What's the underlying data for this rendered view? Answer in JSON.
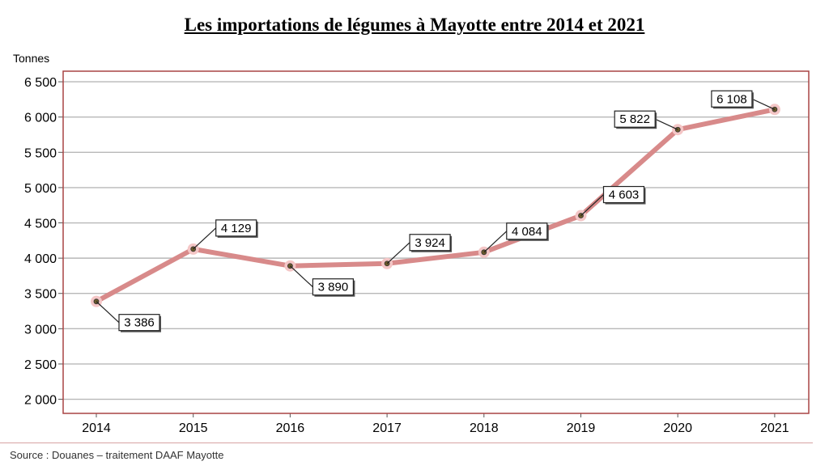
{
  "title": "Les importations de légumes à Mayotte entre 2014 et 2021",
  "source": "Source : Douanes – traitement DAAF Mayotte",
  "chart_data": {
    "type": "line",
    "title": "Les importations de légumes à Mayotte entre 2014 et 2021",
    "ylabel": "Tonnes",
    "xlabel": "",
    "categories": [
      "2014",
      "2015",
      "2016",
      "2017",
      "2018",
      "2019",
      "2020",
      "2021"
    ],
    "values": [
      3386,
      4129,
      3890,
      3924,
      4084,
      4603,
      5822,
      6108
    ],
    "data_labels": [
      "3 386",
      "4 129",
      "3 890",
      "3 924",
      "4 084",
      "4 603",
      "5 822",
      "6 108"
    ],
    "ylim": [
      1800,
      6650
    ],
    "yticks": [
      2000,
      2500,
      3000,
      3500,
      4000,
      4500,
      5000,
      5500,
      6000,
      6500
    ],
    "ytick_labels": [
      "2 000",
      "2 500",
      "3 000",
      "3 500",
      "4 000",
      "4 500",
      "5 000",
      "5 500",
      "6 000",
      "6 500"
    ],
    "grid": true,
    "colors": {
      "line": "#d88a8a",
      "marker_halo": "#f4c6c6",
      "frame": "#a94444",
      "grid": "#b8b8b8"
    }
  }
}
